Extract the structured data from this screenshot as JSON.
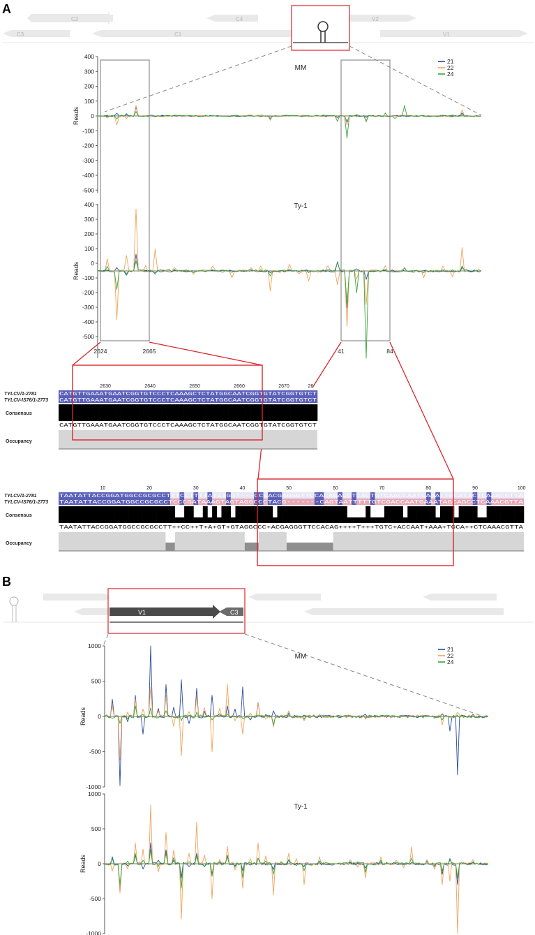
{
  "panels": {
    "a": "A",
    "b": "B"
  },
  "genome_map": {
    "genes_top_row": [
      "C2",
      "C4",
      "V2"
    ],
    "genes_bottom_row": [
      "C3",
      "C1",
      "V1"
    ],
    "panel_b_genes": [
      "V1",
      "C3"
    ]
  },
  "colors": {
    "s21": "#2a4b9b",
    "s22": "#f0a35a",
    "s24": "#3aa33a",
    "highlight": "#d9262c",
    "gene_bg": "#e9e9e9",
    "seq_blue": "#5a5fb8",
    "seq_pink": "#e7a9b7",
    "consensus": "#000000",
    "occupancy": "#d6d6d6",
    "occupancy_dark": "#8f8f8f"
  },
  "alignment": {
    "seq_names": [
      "TYLCV/1-2781",
      "TYLCV-IS76/1-2773"
    ],
    "consensus_label": "Consensus",
    "occupancy_label": "Occupancy",
    "block1": {
      "ruler": [
        "2630",
        "2640",
        "2650",
        "2660",
        "2670",
        "26"
      ],
      "seq1": "CATGTTGAAATGAATCGGTGTCCCTCAAAGCTCTATGGCAATCGGTGTATCGGTGTCT",
      "seq2": "CATGTTGAAATGAATCGGTGTCCCTCAAAGCTCTATGGCAATCGGTGTATCGGTGTCT",
      "consensus": "CATGTTGAAATGAATCGGTGTCCCTCAAAGCTCTATGGCAATCGGTGTATCGGTGTCT"
    },
    "block2": {
      "ruler": [
        "10",
        "20",
        "30",
        "40",
        "50",
        "60",
        "70",
        "80",
        "90",
        "100"
      ],
      "seq1": "TAATATTACCGGATGGCCGCGCCTTTCCTTTTATGTGGT---CCCACGAGGGTTCCACAGACGTCACTGTCAACCAATCAAATTGCATACTCAAACGTTA",
      "seq2": "TAATATTACCGGATGGCCGCGCCTCCCGATAAAGTAGTAGGCCCTACG-------CAGTAATTTTTGTCGACCAATGAAATAGCAGCCTCAAACGTTA",
      "consensus": "TAATATTACCGGATGGCCGCGCCTT++CC++T+A+GT+GTAGGCCC+ACGAGGGTTCCACAG++++T+++TGTC+ACCAAT+AAA+TGCA++CTCAAACGTTA"
    }
  },
  "chart_data": [
    {
      "type": "line",
      "title": "MM",
      "ylabel": "Reads",
      "ylim": [
        -520,
        400
      ],
      "yticks": [
        400,
        300,
        200,
        100,
        0,
        -100,
        -200,
        -300,
        -400,
        -500
      ],
      "legend": [
        "21",
        "22",
        "24"
      ],
      "legend_position": "top-right",
      "series": [
        {
          "name": "21",
          "x": [
            0,
            5,
            10,
            15,
            20,
            25,
            30,
            35,
            40,
            45,
            50,
            55,
            60,
            65,
            70,
            75,
            80,
            85,
            90,
            95,
            100
          ],
          "values": [
            0,
            18,
            60,
            -4,
            2,
            0,
            0,
            2,
            0,
            -20,
            0,
            2,
            0,
            -40,
            -10,
            0,
            0,
            2,
            0,
            20,
            0
          ]
        },
        {
          "name": "22",
          "x": [
            0,
            5,
            10,
            15,
            20,
            25,
            30,
            35,
            40,
            45,
            50,
            55,
            60,
            65,
            70,
            75,
            80,
            85,
            90,
            95,
            100
          ],
          "values": [
            0,
            -60,
            70,
            -8,
            6,
            -5,
            4,
            -4,
            6,
            -30,
            5,
            -5,
            4,
            -60,
            -30,
            3,
            4,
            -5,
            6,
            40,
            0
          ]
        },
        {
          "name": "24",
          "x": [
            0,
            5,
            10,
            15,
            20,
            25,
            30,
            35,
            40,
            45,
            50,
            55,
            60,
            65,
            70,
            75,
            80,
            85,
            90,
            95,
            100
          ],
          "values": [
            0,
            -20,
            30,
            -4,
            4,
            0,
            2,
            0,
            3,
            -10,
            2,
            0,
            2,
            -150,
            -40,
            20,
            70,
            0,
            4,
            10,
            0
          ]
        }
      ],
      "xmarks": [
        "2624",
        "2665",
        "41",
        "84"
      ]
    },
    {
      "type": "line",
      "title": "Ty-1",
      "ylabel": "Reads",
      "ylim": [
        -520,
        400
      ],
      "legend": [
        "21",
        "22",
        "24"
      ],
      "series": [
        {
          "name": "21",
          "x": [
            0,
            5,
            10,
            15,
            20,
            25,
            30,
            35,
            40,
            45,
            50,
            55,
            60,
            65,
            70,
            75,
            80,
            85,
            90,
            95,
            100
          ],
          "values": [
            0,
            20,
            100,
            -10,
            4,
            0,
            2,
            0,
            2,
            -10,
            2,
            0,
            2,
            -220,
            -50,
            2,
            0,
            2,
            0,
            20,
            0
          ]
        },
        {
          "name": "22",
          "x": [
            0,
            5,
            10,
            15,
            20,
            25,
            30,
            35,
            40,
            45,
            50,
            55,
            60,
            65,
            70,
            75,
            80,
            85,
            90,
            95,
            100
          ],
          "values": [
            0,
            -290,
            370,
            130,
            20,
            -20,
            30,
            -40,
            20,
            -120,
            40,
            -60,
            30,
            -330,
            -200,
            30,
            20,
            -40,
            30,
            140,
            0
          ]
        },
        {
          "name": "24",
          "x": [
            0,
            5,
            10,
            15,
            20,
            25,
            30,
            35,
            40,
            45,
            50,
            55,
            60,
            65,
            70,
            75,
            80,
            85,
            90,
            95,
            100
          ],
          "values": [
            0,
            -110,
            60,
            -20,
            10,
            -10,
            8,
            -8,
            10,
            -30,
            10,
            -10,
            8,
            -200,
            -520,
            10,
            20,
            -10,
            8,
            30,
            0
          ]
        }
      ]
    },
    {
      "type": "line",
      "title": "MM",
      "ylabel": "Reads",
      "ylim": [
        -1000,
        1000
      ],
      "yticks": [
        1000,
        500,
        0,
        -500,
        -1000
      ],
      "legend": [
        "21",
        "22",
        "24"
      ],
      "legend_position": "top-right",
      "series": [
        {
          "name": "21",
          "x": [
            0,
            4,
            8,
            12,
            16,
            20,
            24,
            28,
            32,
            36,
            40,
            44,
            48,
            52,
            56,
            60,
            64,
            68,
            72,
            76,
            80,
            84,
            88,
            92,
            96,
            100
          ],
          "values": [
            0,
            -980,
            300,
            1000,
            450,
            520,
            400,
            300,
            150,
            420,
            200,
            80,
            50,
            20,
            10,
            0,
            10,
            30,
            10,
            0,
            0,
            10,
            40,
            -830,
            30,
            0
          ]
        },
        {
          "name": "22",
          "x": [
            0,
            4,
            8,
            12,
            16,
            20,
            24,
            28,
            32,
            36,
            40,
            44,
            48,
            52,
            56,
            60,
            64,
            68,
            72,
            76,
            80,
            84,
            88,
            92,
            96,
            100
          ],
          "values": [
            0,
            -620,
            250,
            420,
            300,
            -560,
            280,
            -500,
            460,
            -250,
            200,
            -150,
            80,
            -60,
            30,
            0,
            20,
            -40,
            20,
            0,
            10,
            20,
            -120,
            60,
            20,
            0
          ]
        },
        {
          "name": "24",
          "x": [
            0,
            4,
            8,
            12,
            16,
            20,
            24,
            28,
            32,
            36,
            40,
            44,
            48,
            52,
            56,
            60,
            64,
            68,
            72,
            76,
            80,
            84,
            88,
            92,
            96,
            100
          ],
          "values": [
            0,
            -100,
            150,
            120,
            80,
            -60,
            60,
            -50,
            40,
            -30,
            20,
            -120,
            20,
            -40,
            10,
            0,
            10,
            -20,
            10,
            0,
            5,
            10,
            -50,
            20,
            10,
            0
          ]
        }
      ]
    },
    {
      "type": "line",
      "title": "Ty-1",
      "ylabel": "Reads",
      "ylim": [
        -1000,
        1000
      ],
      "yticks": [
        1000,
        500,
        0,
        -500,
        -1000
      ],
      "legend": [
        "21",
        "22",
        "24"
      ],
      "series": [
        {
          "name": "21",
          "x": [
            0,
            4,
            8,
            12,
            16,
            20,
            24,
            28,
            32,
            36,
            40,
            44,
            48,
            52,
            56,
            60,
            64,
            68,
            72,
            76,
            80,
            84,
            88,
            92,
            96,
            100
          ],
          "values": [
            0,
            -400,
            120,
            300,
            200,
            -200,
            150,
            -150,
            120,
            -100,
            80,
            -80,
            60,
            -40,
            30,
            0,
            20,
            -60,
            30,
            0,
            20,
            40,
            -150,
            -300,
            20,
            0
          ]
        },
        {
          "name": "22",
          "x": [
            0,
            4,
            8,
            12,
            16,
            20,
            24,
            28,
            32,
            36,
            40,
            44,
            48,
            52,
            56,
            60,
            64,
            68,
            72,
            76,
            80,
            84,
            88,
            92,
            96,
            100
          ],
          "values": [
            0,
            -420,
            300,
            840,
            450,
            -790,
            600,
            -500,
            250,
            -350,
            300,
            -450,
            150,
            -300,
            100,
            0,
            60,
            -200,
            100,
            50,
            240,
            60,
            -300,
            -1000,
            60,
            0
          ]
        },
        {
          "name": "24",
          "x": [
            0,
            4,
            8,
            12,
            16,
            20,
            24,
            28,
            32,
            36,
            40,
            44,
            48,
            52,
            56,
            60,
            64,
            68,
            72,
            76,
            80,
            84,
            88,
            92,
            96,
            100
          ],
          "values": [
            0,
            -300,
            150,
            200,
            150,
            -350,
            120,
            -180,
            100,
            -200,
            80,
            -150,
            60,
            -100,
            40,
            0,
            30,
            -120,
            50,
            20,
            80,
            30,
            -100,
            -200,
            30,
            0
          ]
        }
      ]
    }
  ]
}
